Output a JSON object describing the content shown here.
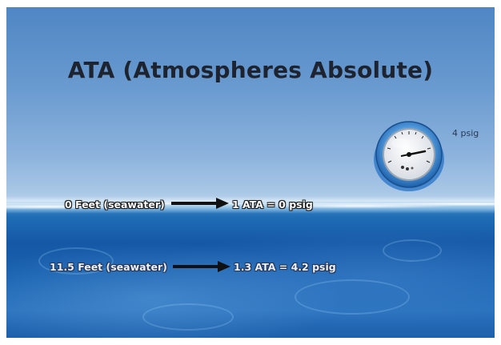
{
  "slide": {
    "title": "ATA (Atmospheres Absolute)",
    "gauge_reading": "4 psig",
    "rows": [
      {
        "depth_label": "0 Feet (seawater)",
        "result_label": "1 ATA  = 0 psig"
      },
      {
        "depth_label": "11.5 Feet (seawater)",
        "result_label": "1.3 ATA  = 4.2 psig"
      }
    ]
  },
  "icons": {
    "gauge": "pressure-gauge-icon",
    "arrow": "right-arrow-icon"
  },
  "colors": {
    "sky": "#6a9bd0",
    "sea": "#1558a6",
    "title": "#1d2430",
    "arrow": "#111111"
  }
}
